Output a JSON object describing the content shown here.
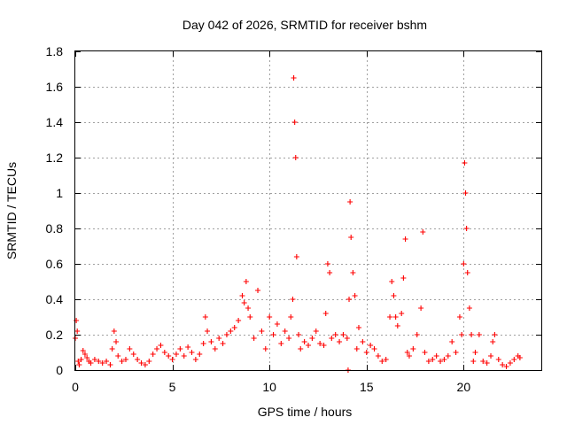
{
  "chart_data": {
    "type": "scatter",
    "title": "Day 042 of 2026, SRMTID for receiver bshm",
    "xlabel": "GPS time / hours",
    "ylabel": "SRMTID / TECUs",
    "xlim": [
      0,
      24
    ],
    "ylim": [
      0,
      1.8
    ],
    "xticks": [
      0,
      5,
      10,
      15,
      20
    ],
    "xtick_labels": [
      "0",
      "5",
      "10",
      "15",
      "20"
    ],
    "yticks": [
      0,
      0.2,
      0.4,
      0.6,
      0.8,
      1,
      1.2,
      1.4,
      1.6,
      1.8
    ],
    "ytick_labels": [
      "0",
      "0.2",
      "0.4",
      "0.6",
      "0.8",
      "1",
      "1.2",
      "1.4",
      "1.6",
      "1.8"
    ],
    "grid": true,
    "marker": "+",
    "color": "#ff0000",
    "series": [
      {
        "name": "SRMTID",
        "x": [
          0.0,
          0.05,
          0.1,
          0.15,
          0.2,
          0.3,
          0.4,
          0.5,
          0.6,
          0.7,
          0.8,
          1.0,
          1.2,
          1.4,
          1.6,
          1.8,
          1.9,
          2.0,
          2.1,
          2.2,
          2.4,
          2.6,
          2.8,
          3.0,
          3.2,
          3.4,
          3.6,
          3.8,
          4.0,
          4.2,
          4.4,
          4.6,
          4.8,
          5.0,
          5.2,
          5.4,
          5.6,
          5.8,
          6.0,
          6.2,
          6.4,
          6.6,
          6.7,
          6.8,
          7.0,
          7.2,
          7.4,
          7.6,
          7.8,
          8.0,
          8.2,
          8.4,
          8.6,
          8.7,
          8.8,
          8.9,
          9.0,
          9.2,
          9.4,
          9.6,
          9.8,
          10.0,
          10.2,
          10.4,
          10.6,
          10.8,
          11.0,
          11.1,
          11.2,
          11.25,
          11.3,
          11.35,
          11.4,
          11.5,
          11.6,
          11.8,
          12.0,
          12.2,
          12.4,
          12.6,
          12.8,
          12.9,
          13.0,
          13.1,
          13.2,
          13.4,
          13.6,
          13.8,
          14.0,
          14.05,
          14.1,
          14.15,
          14.2,
          14.3,
          14.4,
          14.5,
          14.6,
          14.8,
          15.0,
          15.2,
          15.4,
          15.6,
          15.8,
          16.0,
          16.2,
          16.3,
          16.4,
          16.5,
          16.6,
          16.8,
          16.9,
          17.0,
          17.1,
          17.2,
          17.4,
          17.6,
          17.8,
          17.9,
          18.0,
          18.2,
          18.4,
          18.6,
          18.8,
          19.0,
          19.2,
          19.4,
          19.6,
          19.8,
          19.9,
          20.0,
          20.05,
          20.1,
          20.15,
          20.2,
          20.3,
          20.4,
          20.5,
          20.6,
          20.8,
          21.0,
          21.2,
          21.4,
          21.5,
          21.6,
          21.8,
          22.0,
          22.2,
          22.4,
          22.6,
          22.8,
          22.9
        ],
        "y": [
          0.18,
          0.28,
          0.22,
          0.05,
          0.03,
          0.06,
          0.11,
          0.09,
          0.07,
          0.05,
          0.04,
          0.06,
          0.05,
          0.04,
          0.05,
          0.03,
          0.12,
          0.22,
          0.16,
          0.08,
          0.05,
          0.06,
          0.12,
          0.09,
          0.06,
          0.04,
          0.03,
          0.05,
          0.09,
          0.12,
          0.14,
          0.1,
          0.08,
          0.06,
          0.09,
          0.12,
          0.08,
          0.13,
          0.1,
          0.06,
          0.09,
          0.15,
          0.3,
          0.22,
          0.16,
          0.12,
          0.18,
          0.15,
          0.2,
          0.22,
          0.24,
          0.28,
          0.42,
          0.38,
          0.5,
          0.35,
          0.3,
          0.18,
          0.45,
          0.22,
          0.12,
          0.3,
          0.2,
          0.26,
          0.15,
          0.22,
          0.18,
          0.3,
          0.4,
          1.65,
          1.4,
          1.2,
          0.64,
          0.2,
          0.12,
          0.16,
          0.14,
          0.18,
          0.22,
          0.15,
          0.14,
          0.32,
          0.6,
          0.55,
          0.18,
          0.2,
          0.16,
          0.2,
          0.18,
          0.0,
          0.4,
          0.95,
          0.75,
          0.55,
          0.42,
          0.12,
          0.24,
          0.16,
          0.1,
          0.14,
          0.12,
          0.08,
          0.05,
          0.06,
          0.3,
          0.5,
          0.42,
          0.3,
          0.25,
          0.32,
          0.52,
          0.74,
          0.1,
          0.08,
          0.12,
          0.2,
          0.35,
          0.78,
          0.1,
          0.05,
          0.06,
          0.08,
          0.05,
          0.06,
          0.08,
          0.16,
          0.1,
          0.3,
          0.2,
          0.6,
          1.17,
          1.0,
          0.8,
          0.55,
          0.35,
          0.2,
          0.05,
          0.1,
          0.2,
          0.05,
          0.04,
          0.08,
          0.16,
          0.2,
          0.06,
          0.03,
          0.02,
          0.04,
          0.06,
          0.08,
          0.07
        ]
      }
    ]
  }
}
